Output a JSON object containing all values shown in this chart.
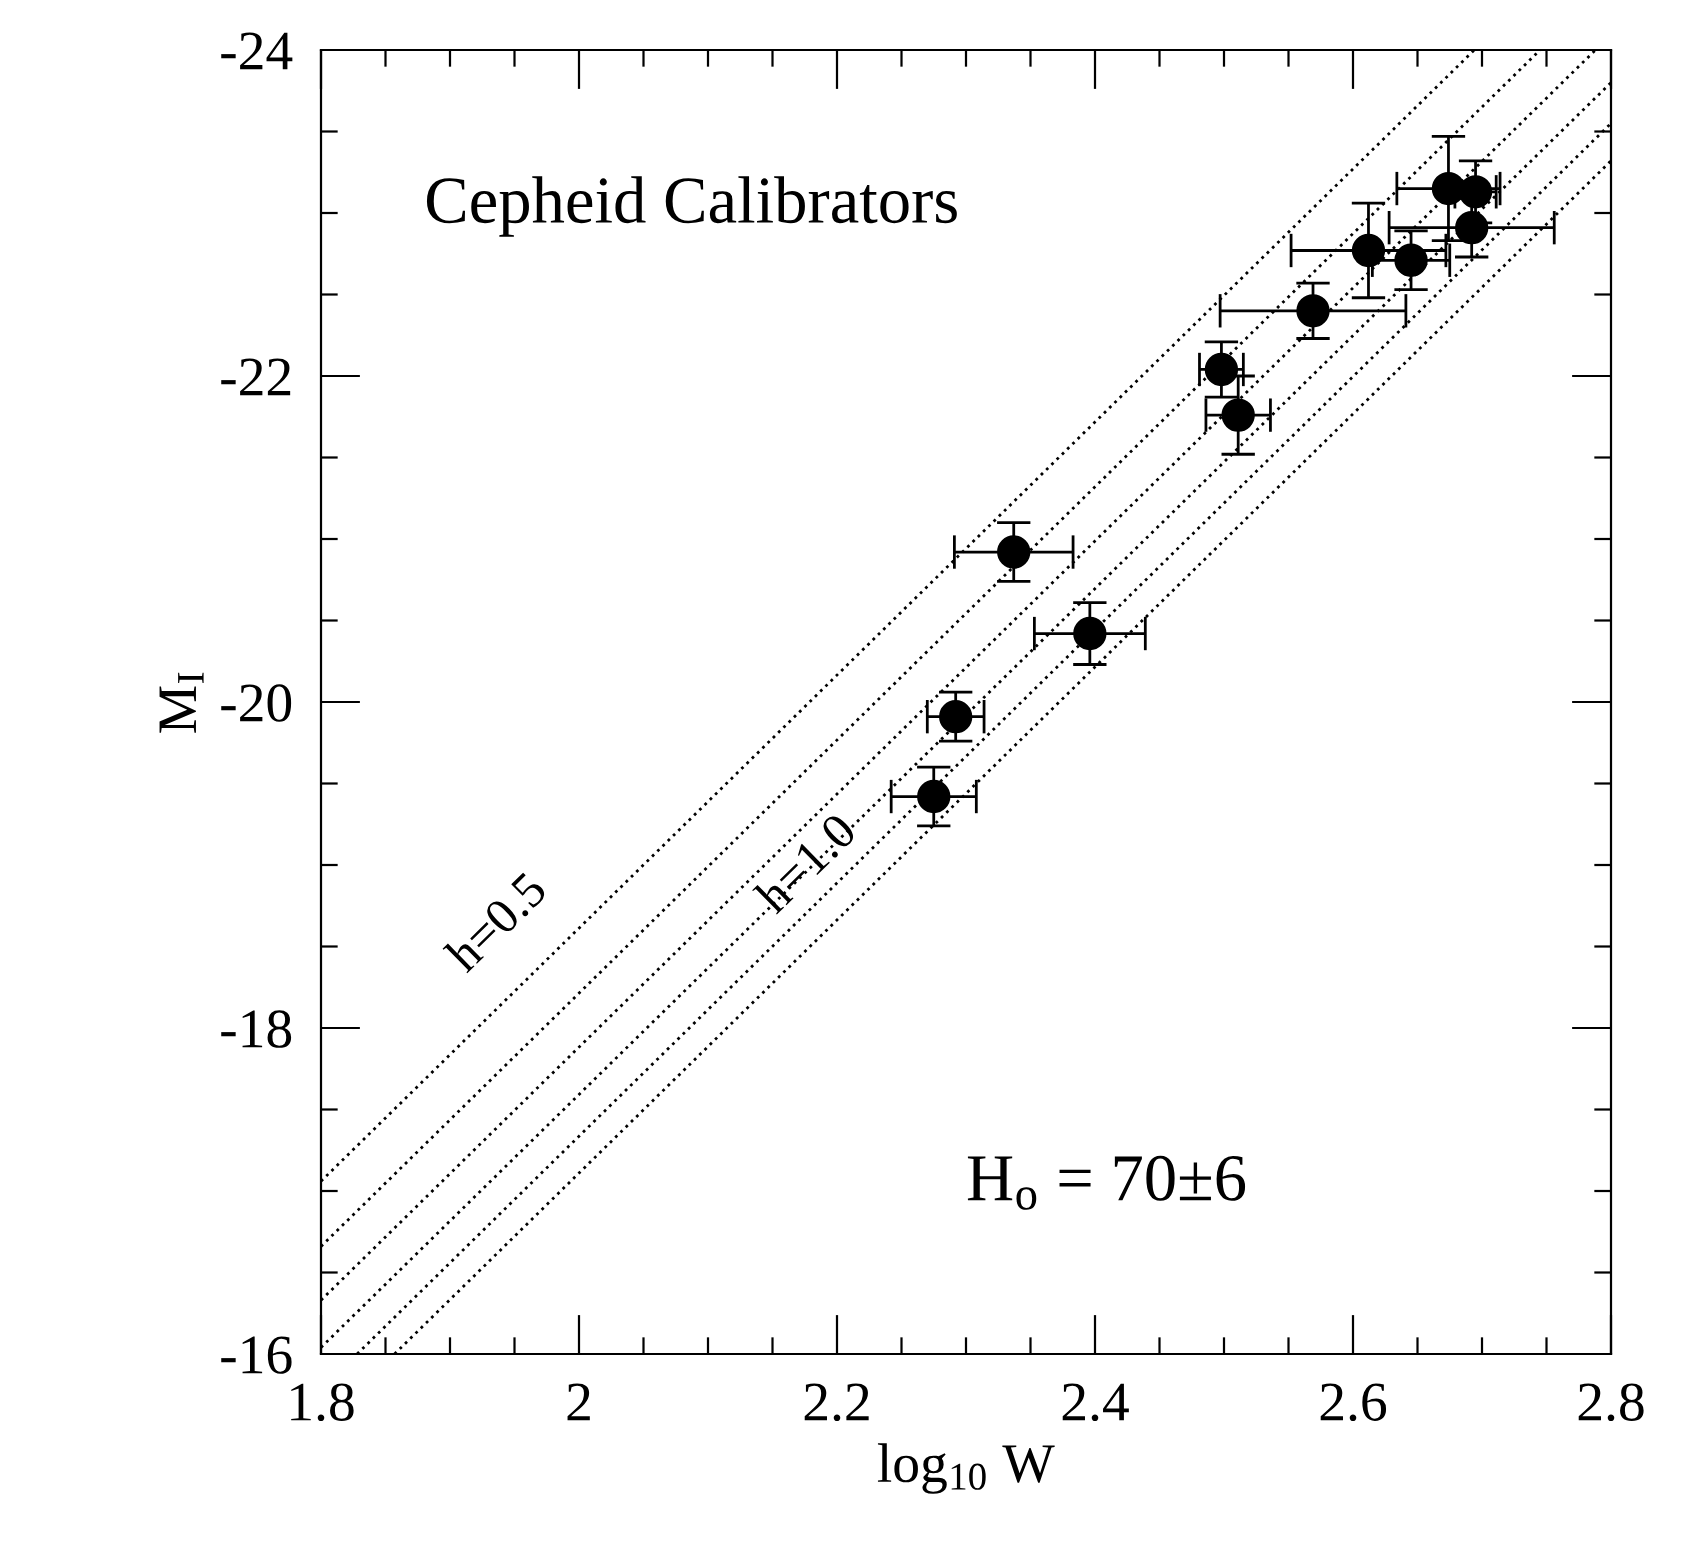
{
  "chart_data": {
    "type": "scatter",
    "xlabel": "log$_{10}$ W",
    "ylabel": "M$_{I}$",
    "xlim": [
      1.8,
      2.8
    ],
    "ylim": [
      -16,
      -24
    ],
    "xticks": [
      1.8,
      {
        "value": 1.85,
        "label": null
      },
      {
        "value": 1.9,
        "label": null
      },
      {
        "value": 1.95,
        "label": null
      },
      2,
      {
        "value": 2.05,
        "label": null
      },
      {
        "value": 2.1,
        "label": null
      },
      {
        "value": 2.15,
        "label": null
      },
      2.2,
      {
        "value": 2.25,
        "label": null
      },
      {
        "value": 2.3,
        "label": null
      },
      {
        "value": 2.35,
        "label": null
      },
      2.4,
      {
        "value": 2.45,
        "label": null
      },
      {
        "value": 2.5,
        "label": null
      },
      {
        "value": 2.55,
        "label": null
      },
      2.6,
      {
        "value": 2.65,
        "label": null
      },
      {
        "value": 2.7,
        "label": null
      },
      {
        "value": 2.75,
        "label": null
      },
      2.8
    ],
    "yticks": [
      -24,
      {
        "value": -23.5,
        "label": null
      },
      {
        "value": -23,
        "label": null
      },
      {
        "value": -22.5,
        "label": null
      },
      -22,
      {
        "value": -21.5,
        "label": null
      },
      {
        "value": -21,
        "label": null
      },
      {
        "value": -20.5,
        "label": null
      },
      -20,
      {
        "value": -19.5,
        "label": null
      },
      {
        "value": -19,
        "label": null
      },
      {
        "value": -18.5,
        "label": null
      },
      -18,
      {
        "value": -17.5,
        "label": null
      },
      {
        "value": -17,
        "label": null
      },
      {
        "value": -16.5,
        "label": null
      },
      -16
    ],
    "grid": false,
    "series": [
      {
        "type": "line",
        "line_style": "dotted",
        "marker": "none",
        "color": "#000000",
        "x": [
          1.8,
          2.694
        ],
        "values": [
          -17.06,
          -24
        ]
      },
      {
        "type": "line",
        "line_style": "dotted",
        "marker": "none",
        "color": "#000000",
        "x": [
          1.8,
          2.745
        ],
        "values": [
          -16.66,
          -24
        ]
      },
      {
        "type": "line",
        "line_style": "dotted",
        "marker": "none",
        "color": "#000000",
        "x": [
          1.8,
          2.788
        ],
        "values": [
          -16.33,
          -24
        ]
      },
      {
        "type": "line",
        "line_style": "dotted",
        "marker": "none",
        "color": "#000000",
        "x": [
          1.8,
          2.8
        ],
        "values": [
          -16.04,
          -23.8
        ]
      },
      {
        "type": "line",
        "line_style": "dotted",
        "marker": "none",
        "color": "#000000",
        "x": [
          1.828,
          2.8
        ],
        "values": [
          -16,
          -23.55
        ]
      },
      {
        "type": "line",
        "line_style": "dotted",
        "marker": "none",
        "color": "#000000",
        "x": [
          1.857,
          2.8
        ],
        "values": [
          -16,
          -23.32
        ]
      },
      {
        "marker": "circle",
        "color": "#000000",
        "x": [
          2.337,
          2.396,
          2.292,
          2.275,
          2.498,
          2.511,
          2.569,
          2.612,
          2.645,
          2.674,
          2.695,
          2.692
        ],
        "values": [
          -20.92,
          -20.42,
          -19.91,
          -19.42,
          -22.04,
          -21.76,
          -22.4,
          -22.77,
          -22.71,
          -23.15,
          -23.13,
          -22.91
        ],
        "errors": [
          0.18,
          0.19,
          0.15,
          0.18,
          0.17,
          0.24,
          0.17,
          0.29,
          0.18,
          0.32,
          0.19,
          0.18
        ],
        "xerrors": [
          0.046,
          0.043,
          0.022,
          0.033,
          0.017,
          0.025,
          0.072,
          0.06,
          0.03,
          0.04,
          0.016,
          0.064
        ]
      }
    ],
    "annotations": [
      "Cepheid Calibrators",
      "H$_{o}$ = 70±6",
      {
        "text": "h=0.5",
        "x": 1.97,
        "y": -18.38
      },
      {
        "text": "h=1.0",
        "x": 2.21,
        "y": -18.74
      }
    ]
  }
}
